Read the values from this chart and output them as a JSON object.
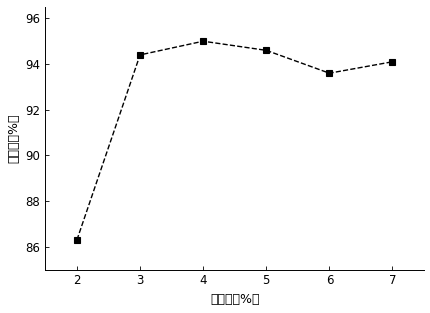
{
  "x": [
    2,
    3,
    4,
    5,
    6,
    7
  ],
  "y": [
    86.3,
    94.4,
    95.0,
    94.6,
    93.6,
    94.1
  ],
  "xlabel": "加酶量（%）",
  "ylabel": "破乳率（%）",
  "xlim": [
    1.5,
    7.5
  ],
  "ylim": [
    85.0,
    96.5
  ],
  "yticks": [
    86,
    88,
    90,
    92,
    94,
    96
  ],
  "xticks": [
    2,
    3,
    4,
    5,
    6,
    7
  ],
  "line_color": "#000000",
  "marker": "s",
  "markersize": 4,
  "linestyle": "--",
  "linewidth": 1.0,
  "background_color": "#ffffff",
  "label_fontsize": 9,
  "tick_fontsize": 8.5
}
